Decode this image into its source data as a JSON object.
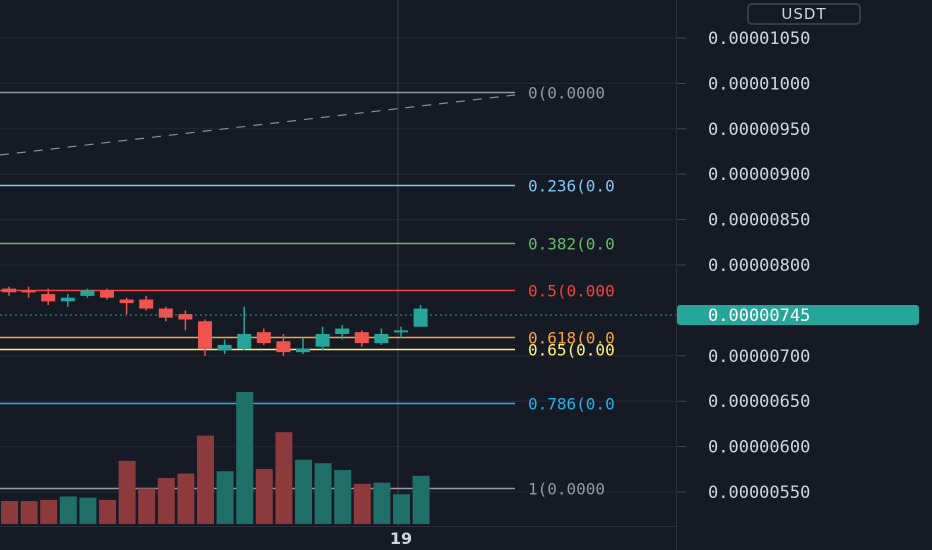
{
  "quote_currency": "USDT",
  "colors": {
    "background": "#161a25",
    "grid": "#242835",
    "up": "#26a69a",
    "down": "#ef5350",
    "up_volume": "#1f6f68",
    "down_volume": "#8c3a3c",
    "price_tag": "#26a69a",
    "axis_text": "#d1d4dc"
  },
  "x_axis": {
    "labels": [
      {
        "text": "19",
        "bar_index": 20
      }
    ]
  },
  "price_axis": {
    "ticks": [
      "0.00001050",
      "0.00001000",
      "0.00000950",
      "0.00000900",
      "0.00000850",
      "0.00000800",
      "0.00000700",
      "0.00000650",
      "0.00000600",
      "0.00000550"
    ],
    "current_price_label": "0.00000745"
  },
  "fib_levels": [
    {
      "label": "0(0.0000",
      "ratio": 0,
      "price": 9.9e-06,
      "color": "#9598a1"
    },
    {
      "label": "0.236(0.0",
      "ratio": 0.236,
      "price": 8.88e-06,
      "color": "#81c7f5"
    },
    {
      "label": "0.382(0.0",
      "ratio": 0.382,
      "price": 8.24e-06,
      "color": "#66bb6a"
    },
    {
      "label": "0.5(0.000",
      "ratio": 0.5,
      "price": 7.72e-06,
      "color": "#f44336"
    },
    {
      "label": "0.618(0.0",
      "ratio": 0.618,
      "price": 7.21e-06,
      "color": "#f9a13a"
    },
    {
      "label": "0.65(0.00",
      "ratio": 0.65,
      "price": 7.07e-06,
      "color": "#fff176"
    },
    {
      "label": "0.786(0.0",
      "ratio": 0.786,
      "price": 6.48e-06,
      "color": "#26b0e8"
    },
    {
      "label": "1(0.0000",
      "ratio": 1,
      "price": 5.54e-06,
      "color": "#9598a1"
    }
  ],
  "chart_data": {
    "type": "candlestick",
    "y_unit": "USDT",
    "ylim": [
      5.2e-06,
      1.07e-05
    ],
    "current_price": 7.45e-06,
    "candles": [
      {
        "o": 7.74e-06,
        "h": 7.76e-06,
        "l": 7.66e-06,
        "c": 7.7e-06
      },
      {
        "o": 7.72e-06,
        "h": 7.76e-06,
        "l": 7.64e-06,
        "c": 7.7e-06
      },
      {
        "o": 7.68e-06,
        "h": 7.74e-06,
        "l": 7.56e-06,
        "c": 7.6e-06
      },
      {
        "o": 7.6e-06,
        "h": 7.68e-06,
        "l": 7.54e-06,
        "c": 7.64e-06
      },
      {
        "o": 7.66e-06,
        "h": 7.74e-06,
        "l": 7.64e-06,
        "c": 7.72e-06
      },
      {
        "o": 7.72e-06,
        "h": 7.74e-06,
        "l": 7.62e-06,
        "c": 7.64e-06
      },
      {
        "o": 7.62e-06,
        "h": 7.64e-06,
        "l": 7.46e-06,
        "c": 7.58e-06
      },
      {
        "o": 7.62e-06,
        "h": 7.66e-06,
        "l": 7.5e-06,
        "c": 7.52e-06
      },
      {
        "o": 7.52e-06,
        "h": 7.54e-06,
        "l": 7.38e-06,
        "c": 7.42e-06
      },
      {
        "o": 7.46e-06,
        "h": 7.5e-06,
        "l": 7.28e-06,
        "c": 7.4e-06
      },
      {
        "o": 7.38e-06,
        "h": 7.4e-06,
        "l": 7e-06,
        "c": 7.08e-06
      },
      {
        "o": 7.06e-06,
        "h": 7.18e-06,
        "l": 7.02e-06,
        "c": 7.12e-06
      },
      {
        "o": 7.08e-06,
        "h": 7.54e-06,
        "l": 7.06e-06,
        "c": 7.24e-06
      },
      {
        "o": 7.26e-06,
        "h": 7.3e-06,
        "l": 7.12e-06,
        "c": 7.14e-06
      },
      {
        "o": 7.16e-06,
        "h": 7.24e-06,
        "l": 7e-06,
        "c": 7.04e-06
      },
      {
        "o": 7.04e-06,
        "h": 7.2e-06,
        "l": 7.02e-06,
        "c": 7.08e-06
      },
      {
        "o": 7.1e-06,
        "h": 7.32e-06,
        "l": 7.06e-06,
        "c": 7.24e-06
      },
      {
        "o": 7.24e-06,
        "h": 7.34e-06,
        "l": 7.18e-06,
        "c": 7.3e-06
      },
      {
        "o": 7.26e-06,
        "h": 7.28e-06,
        "l": 7.1e-06,
        "c": 7.14e-06
      },
      {
        "o": 7.14e-06,
        "h": 7.3e-06,
        "l": 7.12e-06,
        "c": 7.24e-06
      },
      {
        "o": 7.26e-06,
        "h": 7.32e-06,
        "l": 7.2e-06,
        "c": 7.28e-06
      },
      {
        "o": 7.32e-06,
        "h": 7.56e-06,
        "l": 7.32e-06,
        "c": 7.52e-06
      }
    ],
    "volume": [
      20,
      20,
      21,
      24,
      23,
      21,
      55,
      31,
      40,
      44,
      77,
      46,
      115,
      48,
      80,
      56,
      53,
      47,
      35,
      36,
      26,
      42
    ],
    "volume_max": 115
  }
}
